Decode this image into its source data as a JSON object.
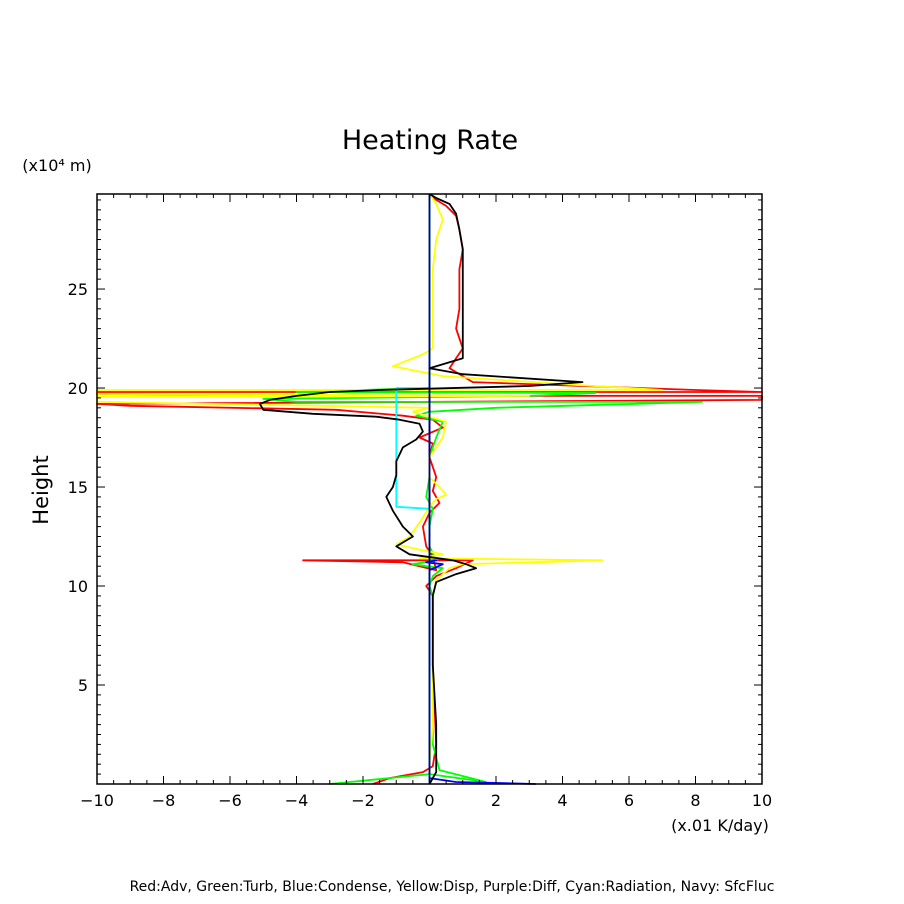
{
  "chart_data": {
    "type": "line",
    "title": "Heating Rate",
    "xlabel": "(x.01 K/day)",
    "ylabel": "Height",
    "yunit": "(x10⁴ m)",
    "legend_caption": "Red:Adv, Green:Turb, Blue:Condense, Yellow:Disp, Purple:Diff, Cyan:Radiation, Navy: SfcFluc",
    "xlim": [
      -10,
      10
    ],
    "ylim": [
      0,
      29.8
    ],
    "xticks": [
      -10,
      -8,
      -6,
      -4,
      -2,
      0,
      2,
      4,
      6,
      8,
      10
    ],
    "yticks": [
      5,
      10,
      15,
      20,
      25
    ],
    "series": [
      {
        "name": "Red:Adv",
        "color": "#ff0000",
        "points": [
          [
            -1.7,
            0
          ],
          [
            -1.2,
            0.3
          ],
          [
            -0.2,
            0.6
          ],
          [
            0.1,
            0.9
          ],
          [
            0.2,
            2
          ],
          [
            0.15,
            4
          ],
          [
            0.1,
            6
          ],
          [
            0.1,
            8
          ],
          [
            0.1,
            9.5
          ],
          [
            -0.1,
            10
          ],
          [
            0.2,
            10.5
          ],
          [
            0.8,
            10.9
          ],
          [
            1.3,
            11.3
          ],
          [
            -3.8,
            11.3
          ],
          [
            -0.8,
            11.2
          ],
          [
            -0.3,
            11.0
          ],
          [
            0.2,
            10.8
          ],
          [
            0.1,
            11.5
          ],
          [
            -0.1,
            12
          ],
          [
            -0.2,
            13
          ],
          [
            0,
            13.7
          ],
          [
            0.3,
            14.2
          ],
          [
            0.1,
            14.8
          ],
          [
            0.2,
            15.5
          ],
          [
            0,
            16.5
          ],
          [
            0.1,
            17.2
          ],
          [
            -0.3,
            17.5
          ],
          [
            0.4,
            18.0
          ],
          [
            0.1,
            18.4
          ],
          [
            -0.8,
            18.6
          ],
          [
            -2.8,
            18.9
          ],
          [
            -9,
            19.1
          ],
          [
            -10,
            19.2
          ],
          [
            10,
            19.4
          ],
          [
            10,
            19.6
          ],
          [
            0,
            19.6
          ],
          [
            -10,
            19.7
          ],
          [
            -10,
            19.8
          ],
          [
            10,
            19.8
          ],
          [
            8,
            19.9
          ],
          [
            1.3,
            20.3
          ],
          [
            0.6,
            21.0
          ],
          [
            0.8,
            21.5
          ],
          [
            1.0,
            22.0
          ],
          [
            0.8,
            23
          ],
          [
            0.9,
            24
          ],
          [
            0.9,
            26
          ],
          [
            1.0,
            27
          ],
          [
            0.9,
            28
          ],
          [
            0.8,
            28.7
          ],
          [
            0.5,
            29.2
          ],
          [
            0.2,
            29.5
          ],
          [
            0,
            29.8
          ]
        ]
      },
      {
        "name": "Green:Turb",
        "color": "#00ff00",
        "points": [
          [
            -3,
            0
          ],
          [
            0,
            0.5
          ],
          [
            1.7,
            0.1
          ],
          [
            0.3,
            0.7
          ],
          [
            0.1,
            2
          ],
          [
            0.1,
            4
          ],
          [
            0.1,
            6
          ],
          [
            0.1,
            8
          ],
          [
            0.1,
            9.5
          ],
          [
            0,
            10
          ],
          [
            0.1,
            10.5
          ],
          [
            0.4,
            10.9
          ],
          [
            -0.1,
            11.0
          ],
          [
            -0.5,
            11.1
          ],
          [
            0.2,
            11.3
          ],
          [
            0,
            12
          ],
          [
            0,
            13
          ],
          [
            0.1,
            13.9
          ],
          [
            -0.1,
            14.5
          ],
          [
            0,
            15.5
          ],
          [
            0,
            16.5
          ],
          [
            0.2,
            17.5
          ],
          [
            0.4,
            18.3
          ],
          [
            -0.4,
            18.6
          ],
          [
            0,
            18.8
          ],
          [
            2,
            19.0
          ],
          [
            8.2,
            19.3
          ],
          [
            -4,
            19.3
          ],
          [
            -5,
            19.45
          ],
          [
            3,
            19.6
          ],
          [
            5,
            19.75
          ],
          [
            -4,
            19.8
          ],
          [
            0,
            20.0
          ],
          [
            0,
            21
          ],
          [
            0,
            25
          ],
          [
            0,
            29.8
          ]
        ]
      },
      {
        "name": "Blue:Condense",
        "color": "#0000ff",
        "points": [
          [
            3.2,
            0
          ],
          [
            0.8,
            0.1
          ],
          [
            0,
            0.3
          ],
          [
            0,
            10.8
          ],
          [
            0.4,
            11.1
          ],
          [
            -0.1,
            11.2
          ],
          [
            0.2,
            11.3
          ],
          [
            0,
            11.5
          ],
          [
            0,
            29.8
          ]
        ]
      },
      {
        "name": "Yellow:Disp",
        "color": "#ffff00",
        "points": [
          [
            0,
            0
          ],
          [
            0,
            1
          ],
          [
            0.1,
            3
          ],
          [
            0.1,
            6
          ],
          [
            0.1,
            9.5
          ],
          [
            0.2,
            10.3
          ],
          [
            0.6,
            10.9
          ],
          [
            1,
            11.1
          ],
          [
            5.2,
            11.3
          ],
          [
            -0.3,
            11.4
          ],
          [
            0.4,
            11.6
          ],
          [
            -0.2,
            11.8
          ],
          [
            -1.0,
            12.1
          ],
          [
            -0.6,
            12.5
          ],
          [
            -0.3,
            13.2
          ],
          [
            0,
            14
          ],
          [
            0.2,
            14.4
          ],
          [
            0.5,
            14.6
          ],
          [
            0.3,
            15.0
          ],
          [
            0,
            15.5
          ],
          [
            0,
            16.5
          ],
          [
            0.4,
            17.5
          ],
          [
            0.5,
            18.3
          ],
          [
            -0.5,
            18.8
          ],
          [
            0,
            19.0
          ],
          [
            -10,
            19.3
          ],
          [
            -10,
            19.55
          ],
          [
            3,
            19.6
          ],
          [
            -10,
            19.7
          ],
          [
            -10,
            19.9
          ],
          [
            7,
            19.9
          ],
          [
            4,
            20.2
          ],
          [
            0.4,
            20.6
          ],
          [
            -0.5,
            20.9
          ],
          [
            -1.1,
            21.1
          ],
          [
            -0.2,
            21.7
          ],
          [
            0.1,
            22.0
          ],
          [
            0.1,
            24
          ],
          [
            0.1,
            26
          ],
          [
            0.2,
            27.5
          ],
          [
            0.4,
            28.5
          ],
          [
            0.2,
            29.3
          ],
          [
            0,
            29.8
          ]
        ]
      },
      {
        "name": "Cyan:Radiation",
        "color": "#00ffff",
        "points": [
          [
            0,
            0
          ],
          [
            0,
            13.9
          ],
          [
            -1,
            14
          ],
          [
            -1,
            20.0
          ],
          [
            0,
            20.0
          ],
          [
            0,
            29.8
          ]
        ]
      },
      {
        "name": "Navy: SfcFluc",
        "color": "#000080",
        "points": [
          [
            0,
            0
          ],
          [
            0,
            29.8
          ]
        ]
      },
      {
        "name": "",
        "color": "#000000",
        "points": [
          [
            0,
            0
          ],
          [
            0.2,
            0.6
          ],
          [
            0.2,
            3
          ],
          [
            0.1,
            6
          ],
          [
            0.1,
            9.5
          ],
          [
            0.2,
            10.2
          ],
          [
            0.8,
            10.6
          ],
          [
            1.4,
            10.9
          ],
          [
            1.1,
            11.1
          ],
          [
            0.7,
            11.3
          ],
          [
            -0.6,
            11.6
          ],
          [
            -1.0,
            12.0
          ],
          [
            -0.5,
            12.5
          ],
          [
            -0.8,
            13.0
          ],
          [
            -1.1,
            13.8
          ],
          [
            -1.3,
            14.5
          ],
          [
            -1.1,
            15.0
          ],
          [
            -1.0,
            15.6
          ],
          [
            -1.0,
            16.3
          ],
          [
            -0.8,
            17.0
          ],
          [
            -0.4,
            17.4
          ],
          [
            -0.2,
            17.8
          ],
          [
            -0.3,
            18.2
          ],
          [
            -0.9,
            18.4
          ],
          [
            -1.6,
            18.55
          ],
          [
            -3.5,
            18.7
          ],
          [
            -5,
            18.9
          ],
          [
            -5.1,
            19.2
          ],
          [
            -4.8,
            19.4
          ],
          [
            -4,
            19.6
          ],
          [
            -3,
            19.8
          ],
          [
            -1.5,
            19.9
          ],
          [
            3,
            20.1
          ],
          [
            4.6,
            20.3
          ],
          [
            1,
            20.7
          ],
          [
            0,
            21.0
          ],
          [
            1.0,
            21.5
          ],
          [
            1.0,
            22
          ],
          [
            1.0,
            23
          ],
          [
            1.0,
            24
          ],
          [
            1.0,
            26
          ],
          [
            1.0,
            27
          ],
          [
            0.9,
            28
          ],
          [
            0.8,
            28.8
          ],
          [
            0.6,
            29.3
          ],
          [
            0.2,
            29.6
          ],
          [
            0,
            29.8
          ]
        ]
      }
    ]
  }
}
